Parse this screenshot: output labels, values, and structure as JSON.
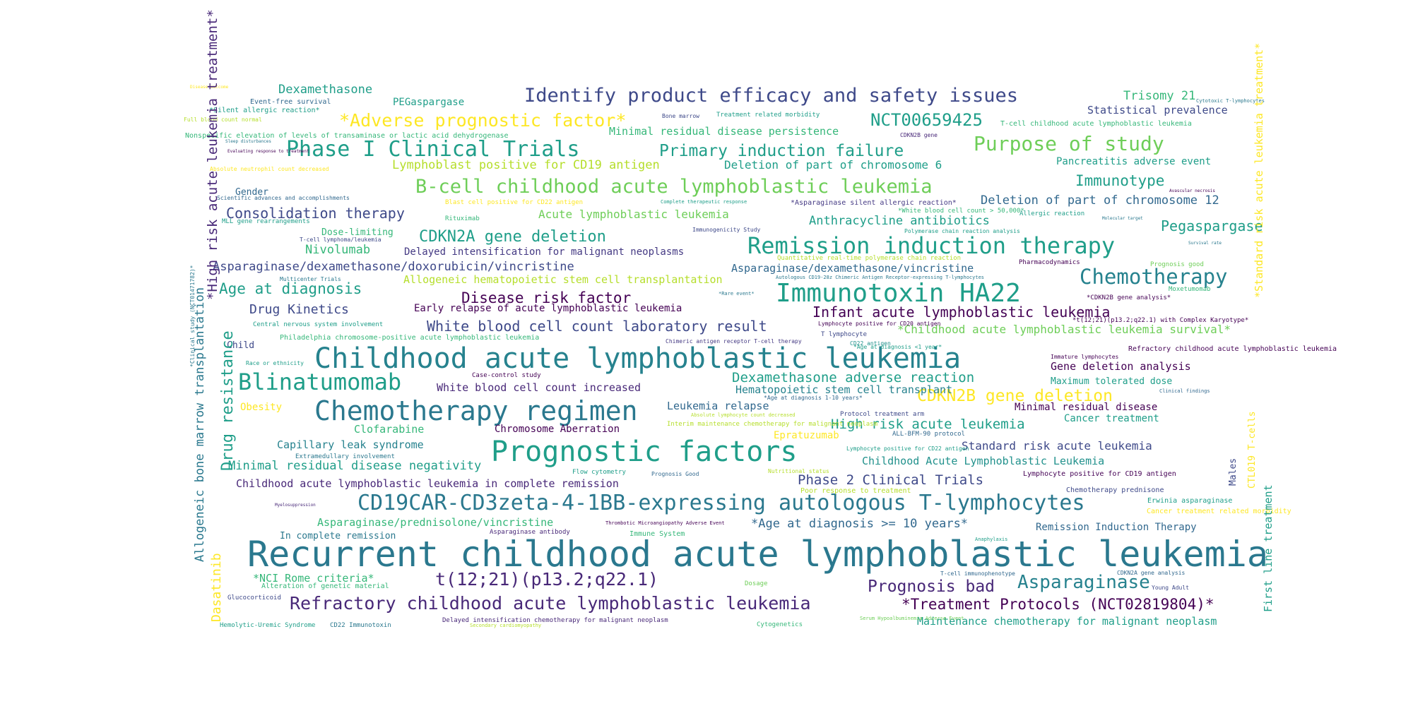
{
  "words": [
    "Recurrent childhood acute lymphoblastic leukemia",
    "Childhood acute lymphoblastic leukemia",
    "Prognostic factors",
    "Chemotherapy regimen",
    "Immunotoxin HA22",
    "CD19CAR-CD3zeta-4-1BB-expressing autologous T-lymphocytes",
    "Remission induction therapy",
    "B-cell childhood acute lymphoblastic leukemia",
    "Identify product efficacy and safety issues",
    "Blinatumomab",
    "Phase I Clinical Trials",
    "Chemotherapy",
    "Purpose of study",
    "Refractory childhood acute lymphoblastic leukemia",
    "*Adverse prognostic factor*",
    "CDKN2B gene deletion",
    "Asparaginase",
    "t(12;21)(p13.2;q22.1)",
    "*Treatment Protocols (NCT02819804)*",
    "Primary induction failure",
    "NCT00659425",
    "CDKN2A gene deletion",
    "Prognosis bad",
    "Infant acute lymphoblastic leukemia",
    "Disease risk factor",
    "White blood cell count laboratory result",
    "Dexamethasone adverse reaction",
    "High risk acute leukemia",
    "Pegaspargase",
    "Consolidation therapy",
    "Asparaginase/dexamethasone/doxorubicin/vincristine",
    "Age at diagnosis",
    "Drug Kinetics",
    "Immunotype",
    "Dexamethasone",
    "Trisomy 21",
    "Lymphoblast positive for CD19 antigen",
    "Deletion of part of chromosome 6",
    "Deletion of part of chromosome 12",
    "Anthracycline antibiotics",
    "Acute lymphoblastic leukemia",
    "Nivolumab",
    "Delayed intensification for malignant neoplasms",
    "Asparaginase/dexamethasone/vincristine",
    "Allogeneic hematopoietic stem cell transplantation",
    "Early relapse of acute lymphoblastic leukemia",
    "*Childhood acute lymphoblastic leukemia survival*",
    "Gene deletion analysis",
    "White blood cell count increased",
    "Hematopoietic stem cell transplant",
    "Leukemia relapse",
    "Minimal residual disease",
    "Clofarabine",
    "Chromosome Aberration",
    "Capillary leak syndrome",
    "Standard risk acute leukemia",
    "Minimal residual disease negativity",
    "Childhood acute lymphoblastic leukemia in complete remission",
    "Phase 2 Clinical Trials",
    "Childhood Acute Lymphoblastic Leukemia",
    "Asparaginase/prednisolone/vincristine",
    "*Age at diagnosis >= 10 years*",
    "Remission Induction Therapy",
    "*NCI Rome criteria*",
    "Maintenance chemotherapy for malignant neoplasm",
    "Minimal residual disease persistence",
    "Pancreatitis adverse event",
    "Statistical prevalence",
    "PEGaspargase",
    "Maximum tolerated dose",
    "Cancer treatment",
    "Obesity",
    "Epratuzumab",
    "Dose-limiting",
    "Gender",
    "Child",
    "In complete remission",
    "Alteration of genetic material",
    "Glucocorticoid",
    "Hemolytic-Uremic Syndrome",
    "CD22 Immunotoxin",
    "Delayed intensification chemotherapy for malignant neoplasm",
    "Cytogenetics",
    "Dosage",
    "Central nervous system involvement",
    "Philadelphia chromosome-positive acute lymphoblastic leukemia",
    "Extramedullary involvement",
    "Flow cytometry",
    "Prognosis Good",
    "Rituximab",
    "Immunogenicity Study",
    "Event-free survival",
    "*Silent allergic reaction*",
    "Nonspecific elevation of levels of transaminase or lactic acid dehydrogenase",
    "Bone marrow",
    "Treatment related morbidity",
    "T-cell childhood acute lymphoblastic leukemia",
    "CDKN2B gene",
    "Scientific advances and accomplishments",
    "MLL gene rearrangements",
    "T-cell lymphoma/leukemia",
    "Blast cell positive for CD22 antigen",
    "Complete therapeutic response",
    "*Asparaginase silent allergic reaction*",
    "*White blood cell count > 50,000*",
    "Allergic reaction",
    "Polymerase chain reaction analysis",
    "Quantitative real-time polymerase chain reaction",
    "Autologous CD19-28z Chimeric Antigen Receptor-expressing T-lymphocytes",
    "Pharmacodynamics",
    "Prognosis good",
    "Moxetumomab",
    "*CDKN2B gene analysis*",
    "*t(12;21)(p13.2;q22.1) with Complex Karyotype*",
    "Lymphocyte positive for CD20 antigen",
    "T lymphocyte",
    "Chimeric antigen receptor T-cell therapy",
    "CD22 antigen",
    "*Age at diagnosis <1 year*",
    "Refractory childhood acute lymphoblastic leukemia",
    "Immature lymphocytes",
    "Race or ethnicity",
    "Case-control study",
    "*Age at diagnosis 1-10 years*",
    "Protocol treatment arm",
    "Interim maintenance chemotherapy for malignant neoplasm",
    "ALL-BFM-90 protocol",
    "Lymphocyte positive for CD22 antigen",
    "Nutritional status",
    "Poor response to treatment",
    "Lymphocyte positive for CD19 antigen",
    "Chemotherapy prednisone",
    "Erwinia asparaginase",
    "Cancer treatment related morbidity",
    "Thrombotic Microangiopathy Adverse Event",
    "Asparaginase antibody",
    "Immune System",
    "T-cell immunophenotype",
    "CDKN2A gene analysis",
    "Young Adult",
    "Serum Hypoalbuminemia Adverse Event",
    "Secondary cardiomyopathy",
    "Absolute lymphocyte count decreased",
    "Absolute neutrophil count decreased",
    "Multicenter Trials",
    "Sleep disturbances",
    "Evaluating response to treatment",
    "Full blood count normal",
    "Cytotoxic T-lymphocytes",
    "Avascular necrosis",
    "Molecular target",
    "Survival rate",
    "Anaphylaxis",
    "Myelosuppression",
    "Clinical findings",
    "*Rare event*",
    "Disease outcome",
    "*High risk acute leukemia treatment*",
    "Dasatinib",
    "Drug resistance",
    "Allogeneic bone marrow transplantation",
    "*Clinical study (NCT01471782)*",
    "*Standard risk acute leukemia treatment*",
    "First line treatment",
    "CTL019 T-cells",
    "Males"
  ]
}
